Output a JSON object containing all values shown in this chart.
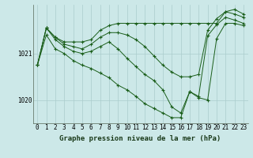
{
  "background_color": "#cce8e8",
  "grid_color": "#aacccc",
  "line_color": "#1a5e1a",
  "title": "Graphe pression niveau de la mer (hPa)",
  "title_fontsize": 6.5,
  "tick_fontsize": 5.5,
  "xlim": [
    -0.5,
    23.5
  ],
  "ylim": [
    1019.5,
    1022.05
  ],
  "yticks": [
    1020,
    1021
  ],
  "xticks": [
    0,
    1,
    2,
    3,
    4,
    5,
    6,
    7,
    8,
    9,
    10,
    11,
    12,
    13,
    14,
    15,
    16,
    17,
    18,
    19,
    20,
    21,
    22,
    23
  ],
  "series": [
    [
      1020.75,
      1021.55,
      1021.35,
      1021.25,
      1021.25,
      1021.25,
      1021.3,
      1021.5,
      1021.6,
      1021.65,
      1021.65,
      1021.65,
      1021.65,
      1021.65,
      1021.65,
      1021.65,
      1021.65,
      1021.65,
      1021.65,
      1021.65,
      1021.65,
      1021.9,
      1021.95,
      1021.85
    ],
    [
      1020.75,
      1021.55,
      1021.35,
      1021.2,
      1021.15,
      1021.1,
      1021.2,
      1021.35,
      1021.45,
      1021.45,
      1021.4,
      1021.3,
      1021.15,
      1020.95,
      1020.75,
      1020.6,
      1020.5,
      1020.5,
      1020.55,
      1021.5,
      1021.75,
      1021.9,
      1021.85,
      1021.78
    ],
    [
      1020.75,
      1021.55,
      1021.3,
      1021.15,
      1021.05,
      1021.0,
      1021.05,
      1021.15,
      1021.25,
      1021.1,
      1020.9,
      1020.72,
      1020.55,
      1020.42,
      1020.22,
      1019.85,
      1019.72,
      1020.18,
      1020.08,
      1021.38,
      1021.62,
      1021.78,
      1021.72,
      1021.65
    ],
    [
      1020.75,
      1021.4,
      1021.1,
      1021.0,
      1020.85,
      1020.75,
      1020.68,
      1020.58,
      1020.48,
      1020.32,
      1020.22,
      1020.08,
      1019.92,
      1019.82,
      1019.72,
      1019.62,
      1019.62,
      1020.18,
      1020.05,
      1020.0,
      1021.32,
      1021.65,
      1021.65,
      1021.6
    ]
  ]
}
